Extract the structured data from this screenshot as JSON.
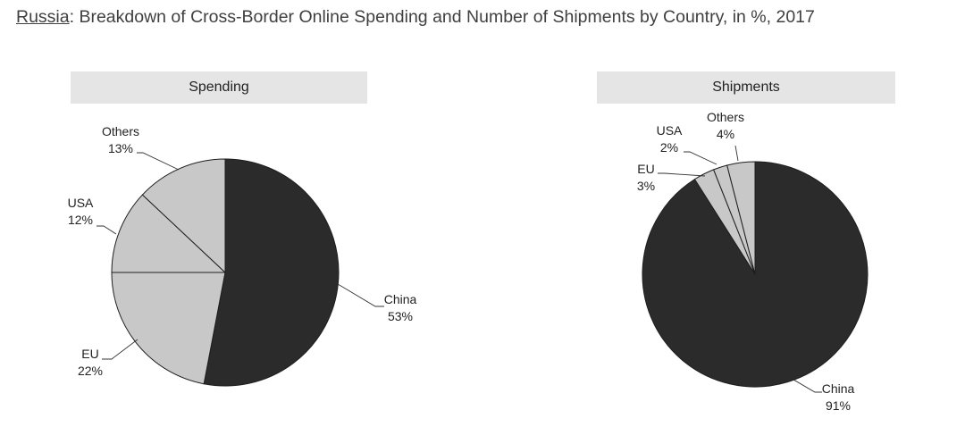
{
  "title": {
    "country": "Russia",
    "rest": ": Breakdown of Cross-Border Online Spending and Number of Shipments by Country, in %, 2017"
  },
  "chart_data": [
    {
      "type": "pie",
      "title": "Spending",
      "unit": "%",
      "slices": [
        {
          "label": "China",
          "value": 53,
          "value_label": "53%",
          "color": "#2b2b2b"
        },
        {
          "label": "EU",
          "value": 22,
          "value_label": "22%",
          "color": "#c8c8c8"
        },
        {
          "label": "USA",
          "value": 12,
          "value_label": "12%",
          "color": "#c8c8c8"
        },
        {
          "label": "Others",
          "value": 13,
          "value_label": "13%",
          "color": "#c8c8c8"
        }
      ]
    },
    {
      "type": "pie",
      "title": "Shipments",
      "unit": "%",
      "slices": [
        {
          "label": "China",
          "value": 91,
          "value_label": "91%",
          "color": "#2b2b2b"
        },
        {
          "label": "EU",
          "value": 3,
          "value_label": "3%",
          "color": "#c8c8c8"
        },
        {
          "label": "USA",
          "value": 2,
          "value_label": "2%",
          "color": "#c8c8c8"
        },
        {
          "label": "Others",
          "value": 4,
          "value_label": "4%",
          "color": "#c8c8c8"
        }
      ]
    }
  ]
}
